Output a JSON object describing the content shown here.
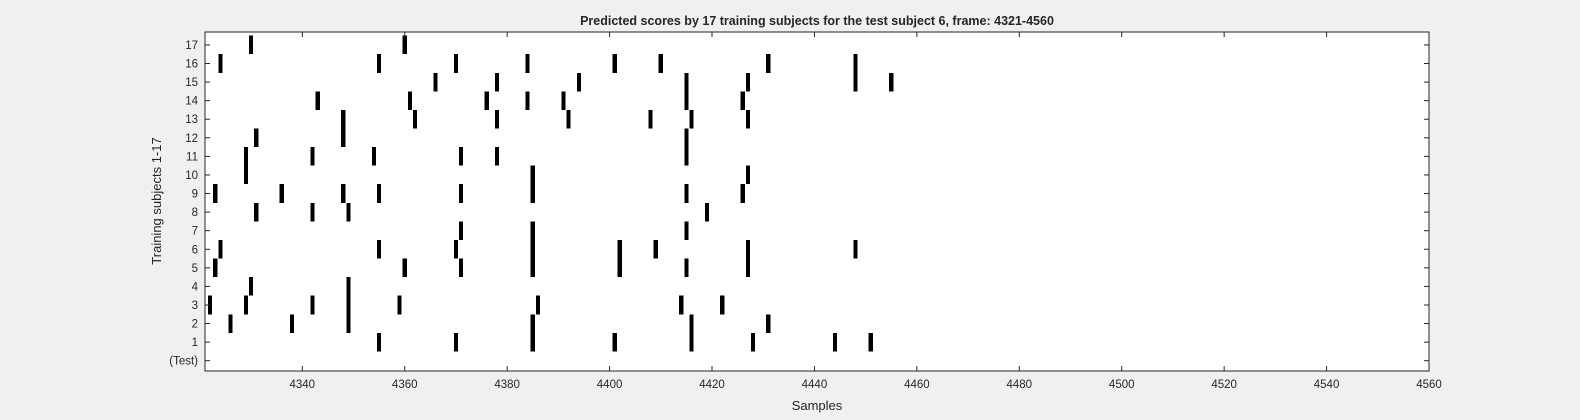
{
  "chart_data": {
    "type": "raster",
    "title": "Predicted scores by 17 training subjects for the test subject 6, frame: 4321-4560",
    "xlabel": "Samples",
    "ylabel": "Training subjects 1-17",
    "xlim": [
      4321,
      4560
    ],
    "x_ticks": [
      4340,
      4360,
      4380,
      4400,
      4420,
      4440,
      4460,
      4480,
      4500,
      4520,
      4540,
      4560
    ],
    "y_tick_labels": [
      "(Test)",
      "1",
      "2",
      "3",
      "4",
      "5",
      "6",
      "7",
      "8",
      "9",
      "10",
      "11",
      "12",
      "13",
      "14",
      "15",
      "16",
      "17"
    ],
    "mark_color": "#000000",
    "rows": [
      {
        "label": "(Test)",
        "samples": []
      },
      {
        "label": "1",
        "samples": [
          4355,
          4370,
          4385,
          4401,
          4416,
          4428,
          4444,
          4451
        ]
      },
      {
        "label": "2",
        "samples": [
          4326,
          4338,
          4349,
          4385,
          4416,
          4431
        ]
      },
      {
        "label": "3",
        "samples": [
          4322,
          4329,
          4342,
          4349,
          4359,
          4386,
          4414,
          4422
        ]
      },
      {
        "label": "4",
        "samples": [
          4330,
          4349
        ]
      },
      {
        "label": "5",
        "samples": [
          4323,
          4360,
          4371,
          4385,
          4402,
          4415,
          4427
        ]
      },
      {
        "label": "6",
        "samples": [
          4324,
          4355,
          4370,
          4385,
          4402,
          4409,
          4427,
          4448
        ]
      },
      {
        "label": "7",
        "samples": [
          4371,
          4385,
          4415
        ]
      },
      {
        "label": "8",
        "samples": [
          4331,
          4342,
          4349,
          4419
        ]
      },
      {
        "label": "9",
        "samples": [
          4323,
          4336,
          4348,
          4355,
          4371,
          4385,
          4415,
          4426
        ]
      },
      {
        "label": "10",
        "samples": [
          4329,
          4385,
          4427
        ]
      },
      {
        "label": "11",
        "samples": [
          4329,
          4342,
          4354,
          4371,
          4378,
          4415
        ]
      },
      {
        "label": "12",
        "samples": [
          4331,
          4348,
          4415
        ]
      },
      {
        "label": "13",
        "samples": [
          4348,
          4362,
          4378,
          4392,
          4408,
          4416,
          4427
        ]
      },
      {
        "label": "14",
        "samples": [
          4343,
          4361,
          4376,
          4384,
          4391,
          4415,
          4426
        ]
      },
      {
        "label": "15",
        "samples": [
          4366,
          4378,
          4394,
          4415,
          4427,
          4448,
          4455
        ]
      },
      {
        "label": "16",
        "samples": [
          4324,
          4355,
          4370,
          4384,
          4401,
          4410,
          4431,
          4448
        ]
      },
      {
        "label": "17",
        "samples": [
          4330,
          4360
        ]
      }
    ]
  }
}
